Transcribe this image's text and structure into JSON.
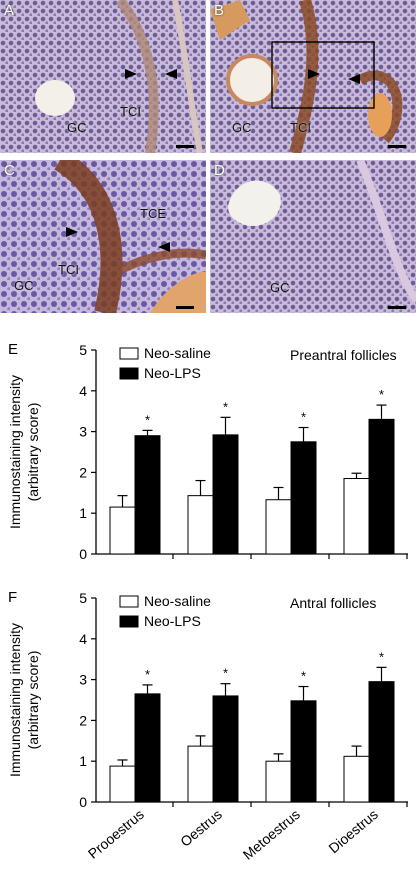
{
  "panels": [
    {
      "letter": "A",
      "labels": {
        "gc": "GC",
        "tci": "TCI"
      }
    },
    {
      "letter": "B",
      "labels": {
        "gc": "GC",
        "tci": "TCI"
      }
    },
    {
      "letter": "C",
      "labels": {
        "gc": "GC",
        "tce": "TCE",
        "tci": "TCI"
      }
    },
    {
      "letter": "D",
      "labels": {
        "gc": "GC"
      }
    }
  ],
  "chart_data": [
    {
      "type": "bar",
      "panel_letter": "E",
      "title": "Preantral follicles",
      "ylabel_line1": "Immunostaining intensity",
      "ylabel_line2": "(arbitrary score)",
      "ylim": [
        0,
        5
      ],
      "yticks": [
        "0",
        "1",
        "2",
        "3",
        "4",
        "5"
      ],
      "categories": [
        "Prooestrus",
        "Oestrus",
        "Metoestrus",
        "Dioestrus"
      ],
      "series": [
        {
          "name": "Neo-saline",
          "color": "#ffffff",
          "values": [
            1.15,
            1.43,
            1.33,
            1.85
          ],
          "errors": [
            0.28,
            0.37,
            0.3,
            0.13
          ]
        },
        {
          "name": "Neo-LPS",
          "color": "#000000",
          "values": [
            2.9,
            2.92,
            2.75,
            3.3
          ],
          "errors": [
            0.13,
            0.43,
            0.35,
            0.35
          ]
        }
      ],
      "significance_marker": "*",
      "legend": "top-left"
    },
    {
      "type": "bar",
      "panel_letter": "F",
      "title": "Antral follicles",
      "ylabel_line1": "Immunostaining intensity",
      "ylabel_line2": "(arbitrary score)",
      "ylim": [
        0,
        5
      ],
      "yticks": [
        "0",
        "1",
        "2",
        "3",
        "4",
        "5"
      ],
      "categories": [
        "Prooestrus",
        "Oestrus",
        "Metoestrus",
        "Dioestrus"
      ],
      "series": [
        {
          "name": "Neo-saline",
          "color": "#ffffff",
          "values": [
            0.88,
            1.37,
            1.0,
            1.12
          ],
          "errors": [
            0.15,
            0.25,
            0.18,
            0.25
          ]
        },
        {
          "name": "Neo-LPS",
          "color": "#000000",
          "values": [
            2.65,
            2.6,
            2.48,
            2.95
          ],
          "errors": [
            0.22,
            0.3,
            0.35,
            0.35
          ]
        }
      ],
      "significance_marker": "*",
      "legend": "top-left"
    }
  ]
}
